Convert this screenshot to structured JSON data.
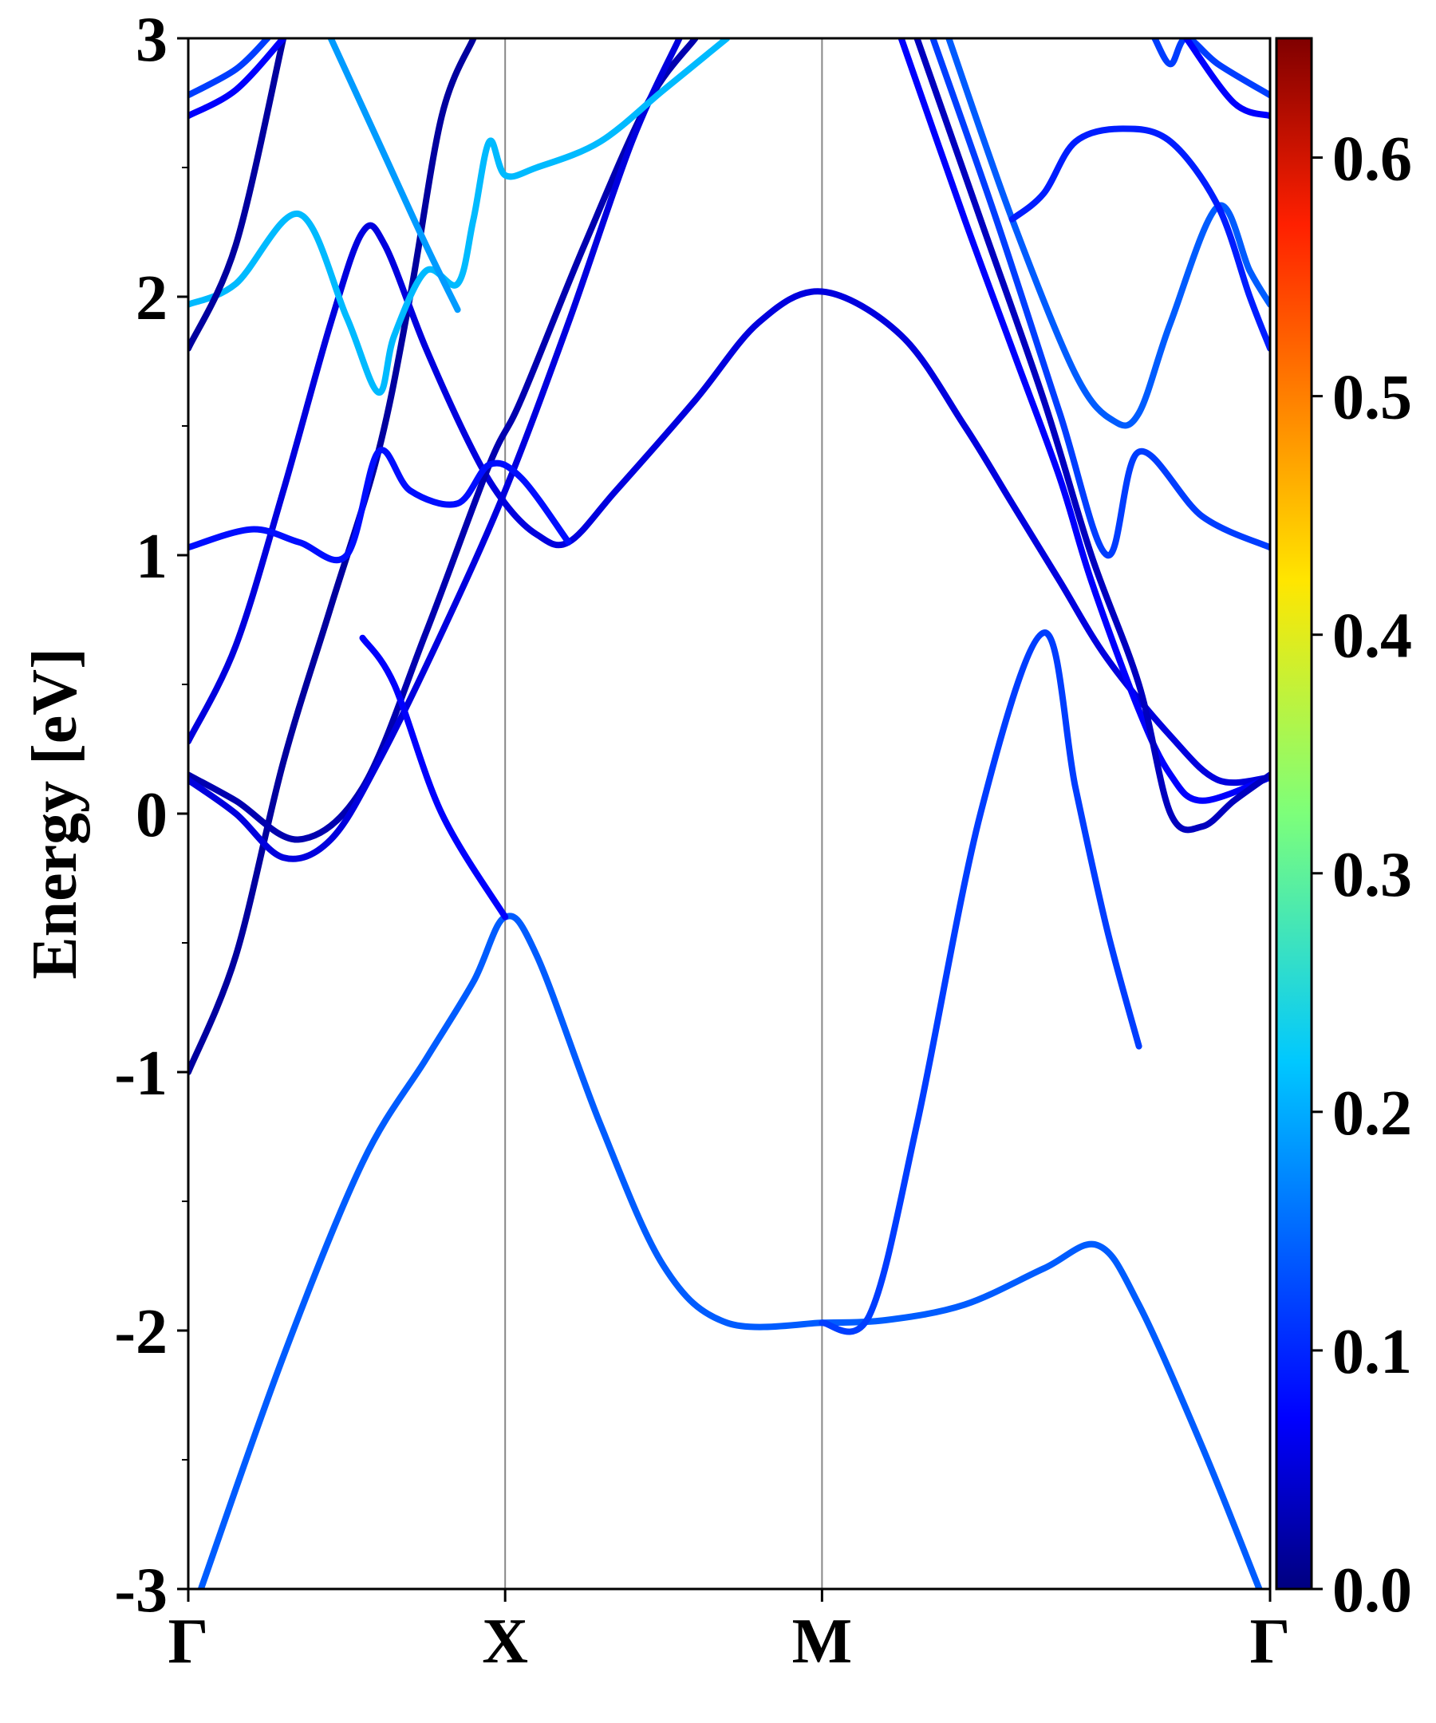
{
  "chart_data": {
    "type": "line",
    "ylabel": "Energy [eV]",
    "ylim": [
      -3,
      3
    ],
    "yticks": [
      {
        "value": 3,
        "label": "3"
      },
      {
        "value": 2,
        "label": "2"
      },
      {
        "value": 1,
        "label": "1"
      },
      {
        "value": 0,
        "label": "0"
      },
      {
        "value": -1,
        "label": "-1"
      },
      {
        "value": -2,
        "label": "-2"
      },
      {
        "value": -3,
        "label": "-3"
      }
    ],
    "yminor_ticks": [
      2.5,
      1.5,
      0.5,
      -0.5,
      -1.5,
      -2.5
    ],
    "xlim": [
      0,
      3.414
    ],
    "kpoints": [
      {
        "label": "Γ",
        "x": 0.0
      },
      {
        "label": "X",
        "x": 1.0
      },
      {
        "label": "M",
        "x": 2.0
      },
      {
        "label": "Γ",
        "x": 3.414
      }
    ],
    "colorbar": {
      "colormap": "jet",
      "range": [
        0.0,
        0.65
      ],
      "ticks": [
        {
          "value": 0.0,
          "label": "0.0"
        },
        {
          "value": 0.1,
          "label": "0.1"
        },
        {
          "value": 0.2,
          "label": "0.2"
        },
        {
          "value": 0.3,
          "label": "0.3"
        },
        {
          "value": 0.4,
          "label": "0.4"
        },
        {
          "value": 0.5,
          "label": "0.5"
        },
        {
          "value": 0.6,
          "label": "0.6"
        }
      ]
    },
    "series": [
      {
        "weight": 0.14,
        "points": [
          [
            0.04,
            -3.0
          ],
          [
            0.3,
            -2.1
          ],
          [
            0.55,
            -1.35
          ],
          [
            0.75,
            -0.95
          ],
          [
            0.9,
            -0.65
          ],
          [
            1.0,
            -0.4
          ],
          [
            1.1,
            -0.55
          ],
          [
            1.3,
            -1.2
          ],
          [
            1.5,
            -1.75
          ],
          [
            1.7,
            -1.97
          ],
          [
            2.0,
            -1.97
          ]
        ]
      },
      {
        "weight": 0.14,
        "points": [
          [
            3.38,
            -3.0
          ],
          [
            3.2,
            -2.45
          ],
          [
            3.0,
            -1.9
          ],
          [
            2.87,
            -1.67
          ],
          [
            2.7,
            -1.76
          ],
          [
            2.45,
            -1.9
          ],
          [
            2.2,
            -1.96
          ],
          [
            2.0,
            -1.97
          ]
        ]
      },
      {
        "weight": 0.12,
        "points": [
          [
            2.0,
            -1.97
          ],
          [
            2.15,
            -1.94
          ],
          [
            2.3,
            -1.2
          ],
          [
            2.5,
            0.0
          ],
          [
            2.7,
            0.7
          ],
          [
            2.8,
            0.1
          ],
          [
            2.9,
            -0.45
          ],
          [
            3.0,
            -0.9
          ]
        ]
      },
      {
        "weight": 0.02,
        "points": [
          [
            0.0,
            -1.0
          ],
          [
            0.15,
            -0.55
          ],
          [
            0.3,
            0.2
          ],
          [
            0.45,
            0.8
          ],
          [
            0.6,
            1.4
          ],
          [
            0.7,
            2.0
          ],
          [
            0.8,
            2.7
          ],
          [
            0.9,
            3.0
          ]
        ]
      },
      {
        "weight": 0.06,
        "points": [
          [
            0.0,
            0.28
          ],
          [
            0.15,
            0.65
          ],
          [
            0.3,
            1.25
          ],
          [
            0.45,
            1.9
          ],
          [
            0.55,
            2.25
          ],
          [
            0.62,
            2.2
          ],
          [
            0.75,
            1.8
          ],
          [
            0.9,
            1.4
          ],
          [
            1.0,
            1.2
          ],
          [
            1.1,
            1.08
          ],
          [
            1.2,
            1.05
          ],
          [
            1.35,
            1.25
          ],
          [
            1.6,
            1.6
          ],
          [
            1.8,
            1.9
          ],
          [
            2.0,
            2.02
          ],
          [
            2.25,
            1.85
          ],
          [
            2.45,
            1.5
          ],
          [
            2.6,
            1.2
          ],
          [
            2.75,
            0.9
          ],
          [
            2.9,
            0.6
          ],
          [
            3.1,
            0.3
          ],
          [
            3.25,
            0.13
          ],
          [
            3.414,
            0.14
          ]
        ]
      },
      {
        "weight": 0.03,
        "points": [
          [
            0.0,
            0.15
          ],
          [
            0.15,
            0.05
          ],
          [
            0.35,
            -0.1
          ],
          [
            0.55,
            0.1
          ],
          [
            0.75,
            0.7
          ],
          [
            0.95,
            1.35
          ],
          [
            1.05,
            1.6
          ],
          [
            1.25,
            2.2
          ],
          [
            1.45,
            2.75
          ],
          [
            1.6,
            3.0
          ]
        ]
      },
      {
        "weight": 0.06,
        "points": [
          [
            0.0,
            0.13
          ],
          [
            0.15,
            0.0
          ],
          [
            0.3,
            -0.17
          ],
          [
            0.45,
            -0.1
          ],
          [
            0.6,
            0.2
          ],
          [
            0.8,
            0.7
          ],
          [
            1.0,
            1.25
          ],
          [
            1.2,
            1.9
          ],
          [
            1.4,
            2.6
          ],
          [
            1.55,
            3.0
          ]
        ]
      },
      {
        "weight": 0.09,
        "points": [
          [
            0.0,
            1.03
          ],
          [
            0.2,
            1.1
          ],
          [
            0.35,
            1.05
          ],
          [
            0.5,
            1.0
          ],
          [
            0.6,
            1.4
          ],
          [
            0.7,
            1.25
          ],
          [
            0.85,
            1.2
          ],
          [
            0.95,
            1.35
          ],
          [
            1.05,
            1.3
          ],
          [
            1.2,
            1.05
          ]
        ]
      },
      {
        "weight": 0.08,
        "points": [
          [
            0.55,
            0.68
          ],
          [
            0.65,
            0.5
          ],
          [
            0.8,
            0.0
          ],
          [
            1.0,
            -0.4
          ]
        ]
      },
      {
        "weight": 0.2,
        "points": [
          [
            0.0,
            1.97
          ],
          [
            0.15,
            2.05
          ],
          [
            0.35,
            2.32
          ],
          [
            0.5,
            1.92
          ],
          [
            0.6,
            1.63
          ],
          [
            0.65,
            1.85
          ],
          [
            0.75,
            2.1
          ],
          [
            0.85,
            2.05
          ],
          [
            0.9,
            2.3
          ],
          [
            0.95,
            2.6
          ],
          [
            1.0,
            2.47
          ],
          [
            1.1,
            2.5
          ],
          [
            1.3,
            2.6
          ],
          [
            1.5,
            2.8
          ],
          [
            1.7,
            3.0
          ]
        ]
      },
      {
        "weight": 0.02,
        "points": [
          [
            0.0,
            1.8
          ],
          [
            0.15,
            2.2
          ],
          [
            0.3,
            3.0
          ]
        ]
      },
      {
        "weight": 0.08,
        "points": [
          [
            0.0,
            2.7
          ],
          [
            0.15,
            2.8
          ],
          [
            0.3,
            3.0
          ]
        ]
      },
      {
        "weight": 0.12,
        "points": [
          [
            0.0,
            2.78
          ],
          [
            0.15,
            2.88
          ],
          [
            0.25,
            3.0
          ]
        ]
      },
      {
        "weight": 0.18,
        "points": [
          [
            0.45,
            3.0
          ],
          [
            0.6,
            2.6
          ],
          [
            0.75,
            2.2
          ],
          [
            0.85,
            1.95
          ]
        ]
      },
      {
        "weight": 0.08,
        "points": [
          [
            2.25,
            3.0
          ],
          [
            2.45,
            2.3
          ],
          [
            2.6,
            1.8
          ],
          [
            2.75,
            1.3
          ],
          [
            2.85,
            0.9
          ],
          [
            3.0,
            0.4
          ],
          [
            3.1,
            0.15
          ],
          [
            3.2,
            0.05
          ],
          [
            3.414,
            0.14
          ]
        ]
      },
      {
        "weight": 0.04,
        "points": [
          [
            2.3,
            3.0
          ],
          [
            2.5,
            2.3
          ],
          [
            2.7,
            1.6
          ],
          [
            2.85,
            1.0
          ],
          [
            3.0,
            0.5
          ],
          [
            3.1,
            0.0
          ],
          [
            3.2,
            -0.05
          ],
          [
            3.3,
            0.05
          ],
          [
            3.414,
            0.15
          ]
        ]
      },
      {
        "weight": 0.12,
        "points": [
          [
            2.35,
            3.0
          ],
          [
            2.55,
            2.3
          ],
          [
            2.75,
            1.55
          ],
          [
            2.9,
            1.0
          ],
          [
            3.0,
            1.4
          ],
          [
            3.2,
            1.15
          ],
          [
            3.414,
            1.03
          ]
        ]
      },
      {
        "weight": 0.14,
        "points": [
          [
            2.4,
            3.0
          ],
          [
            2.6,
            2.3
          ],
          [
            2.8,
            1.7
          ],
          [
            2.92,
            1.52
          ],
          [
            3.0,
            1.55
          ],
          [
            3.1,
            1.9
          ],
          [
            3.25,
            2.35
          ],
          [
            3.35,
            2.1
          ],
          [
            3.414,
            1.97
          ]
        ]
      },
      {
        "weight": 0.1,
        "points": [
          [
            2.6,
            2.3
          ],
          [
            2.7,
            2.4
          ],
          [
            2.8,
            2.6
          ],
          [
            2.95,
            2.65
          ],
          [
            3.1,
            2.6
          ],
          [
            3.25,
            2.35
          ],
          [
            3.35,
            2.0
          ],
          [
            3.414,
            1.8
          ]
        ]
      },
      {
        "weight": 0.12,
        "points": [
          [
            3.05,
            3.0
          ],
          [
            3.1,
            2.9
          ],
          [
            3.15,
            3.0
          ],
          [
            3.25,
            2.9
          ],
          [
            3.414,
            2.78
          ]
        ]
      },
      {
        "weight": 0.08,
        "points": [
          [
            3.15,
            3.0
          ],
          [
            3.3,
            2.75
          ],
          [
            3.414,
            2.7
          ]
        ]
      }
    ]
  }
}
